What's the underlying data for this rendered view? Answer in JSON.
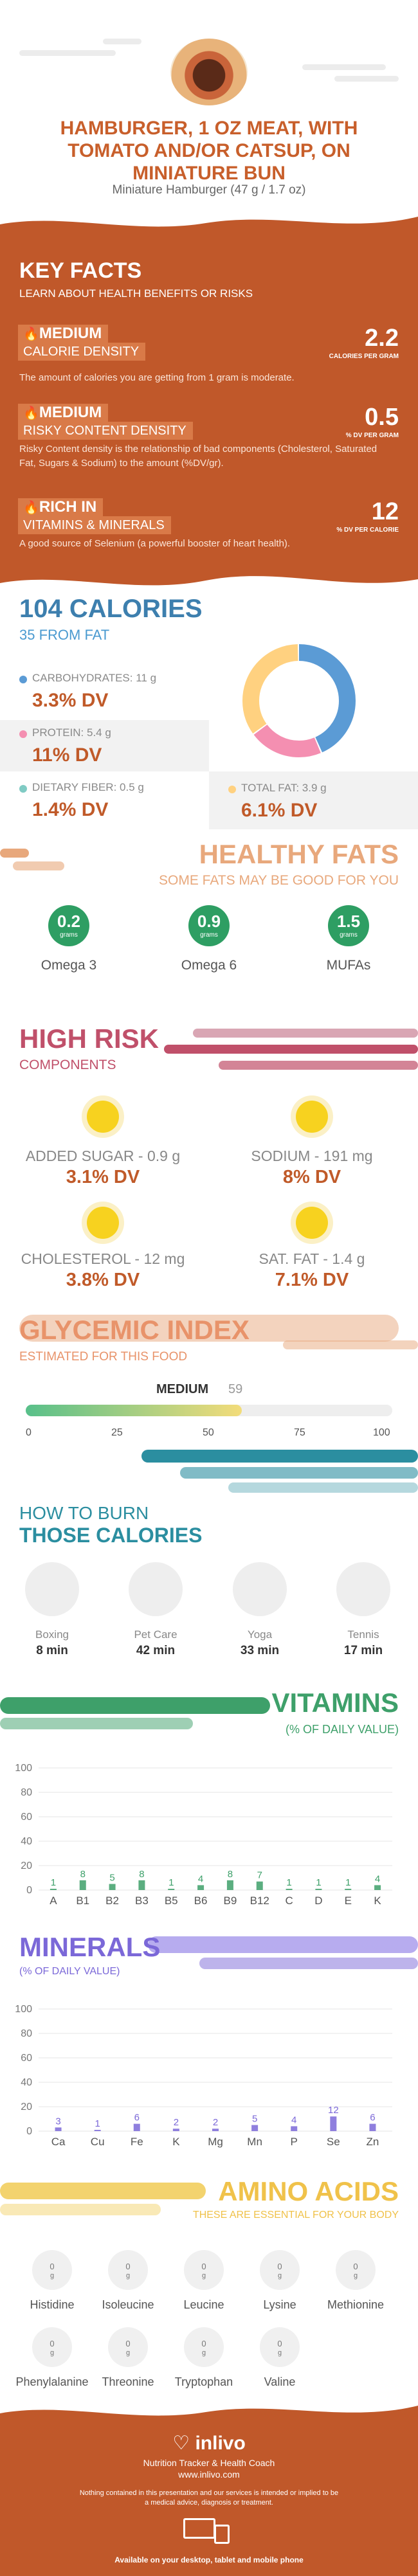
{
  "header": {
    "title": "HAMBURGER, 1 OZ MEAT, WITH TOMATO AND/OR CATSUP, ON MINIATURE BUN",
    "subtitle": "Miniature Hamburger (47 g / 1.7 oz)"
  },
  "key_facts": {
    "heading": "KEY FACTS",
    "subheading": "LEARN ABOUT HEALTH BENEFITS OR RISKS",
    "facts": [
      {
        "level": "MEDIUM",
        "label": "CALORIE DENSITY",
        "value": "2.2",
        "unit": "CALORIES PER GRAM",
        "desc": "The amount of calories you are getting from 1 gram is moderate.",
        "icon": "flame-icon"
      },
      {
        "level": "MEDIUM",
        "label": "RISKY CONTENT DENSITY",
        "value": "0.5",
        "unit": "% DV PER GRAM",
        "desc": "Risky Content density is the relationship of bad components (Cholesterol, Saturated Fat, Sugars & Sodium) to the amount (%DV/gr).",
        "icon": "flame-icon"
      },
      {
        "level": "RICH IN",
        "label": "VITAMINS & MINERALS",
        "value": "12",
        "unit": "% DV PER CALORIE",
        "desc": "A good source of Selenium (a powerful booster of heart health).",
        "icon": "flame-icon"
      }
    ]
  },
  "calories": {
    "title": "104 CALORIES",
    "from_fat": "35 FROM FAT",
    "macros": [
      {
        "label": "CARBOHYDRATES: 11 g",
        "dv": "3.3% DV",
        "color": "#5b9bd5"
      },
      {
        "label": "PROTEIN: 5.4 g",
        "dv": "11% DV",
        "color": "#f48fb1"
      },
      {
        "label": "DIETARY FIBER: 0.5 g",
        "dv": "1.4% DV",
        "color": "#80cbc4"
      },
      {
        "label": "TOTAL FAT: 3.9 g",
        "dv": "6.1% DV",
        "color": "#ffd180"
      }
    ]
  },
  "healthy_fats": {
    "title": "HEALTHY FATS",
    "subtitle": "SOME FATS MAY BE GOOD FOR YOU",
    "items": [
      {
        "value": "0.2",
        "unit": "grams",
        "name": "Omega 3"
      },
      {
        "value": "0.9",
        "unit": "grams",
        "name": "Omega 6"
      },
      {
        "value": "1.5",
        "unit": "grams",
        "name": "MUFAs"
      }
    ]
  },
  "high_risk": {
    "title": "HIGH RISK",
    "subtitle": "COMPONENTS",
    "items": [
      {
        "label": "ADDED SUGAR - 0.9 g",
        "dv": "3.1% DV"
      },
      {
        "label": "SODIUM - 191 mg",
        "dv": "8% DV"
      },
      {
        "label": "CHOLESTEROL - 12 mg",
        "dv": "3.8% DV"
      },
      {
        "label": "SAT. FAT - 1.4 g",
        "dv": "7.1% DV"
      }
    ]
  },
  "glycemic": {
    "title": "GLYCEMIC INDEX",
    "subtitle": "ESTIMATED FOR THIS FOOD",
    "level": "MEDIUM",
    "value": "59",
    "ticks": [
      "0",
      "25",
      "50",
      "75",
      "100"
    ]
  },
  "burn": {
    "title1": "HOW TO BURN",
    "title2": "THOSE CALORIES",
    "activities": [
      {
        "name": "Boxing",
        "min": "8 min"
      },
      {
        "name": "Pet Care",
        "min": "42 min"
      },
      {
        "name": "Yoga",
        "min": "33 min"
      },
      {
        "name": "Tennis",
        "min": "17 min"
      }
    ]
  },
  "chart_data": [
    {
      "type": "bar",
      "title": "VITAMINS",
      "subtitle": "(% OF DAILY VALUE)",
      "categories": [
        "A",
        "B1",
        "B2",
        "B3",
        "B5",
        "B6",
        "B9",
        "B12",
        "C",
        "D",
        "E",
        "K"
      ],
      "values": [
        1,
        8,
        5,
        8,
        1,
        4,
        8,
        7,
        1,
        1,
        1,
        4
      ],
      "ylim": [
        0,
        100
      ],
      "yticks": [
        "0",
        "20",
        "40",
        "60",
        "80",
        "100"
      ],
      "color": "#3ea06a"
    },
    {
      "type": "bar",
      "title": "MINERALS",
      "subtitle": "(% OF DAILY VALUE)",
      "categories": [
        "Ca",
        "Cu",
        "Fe",
        "K",
        "Mg",
        "Mn",
        "P",
        "Se",
        "Zn"
      ],
      "values": [
        3,
        1,
        6,
        2,
        2,
        5,
        4,
        12,
        6
      ],
      "ylim": [
        0,
        100
      ],
      "yticks": [
        "0",
        "20",
        "40",
        "60",
        "80",
        "100"
      ],
      "color": "#7b68d8"
    }
  ],
  "amino": {
    "title": "AMINO ACIDS",
    "subtitle": "THESE ARE ESSENTIAL FOR YOUR BODY",
    "items": [
      {
        "value": "0",
        "unit": "g",
        "name": "Histidine"
      },
      {
        "value": "0",
        "unit": "g",
        "name": "Isoleucine"
      },
      {
        "value": "0",
        "unit": "g",
        "name": "Leucine"
      },
      {
        "value": "0",
        "unit": "g",
        "name": "Lysine"
      },
      {
        "value": "0",
        "unit": "g",
        "name": "Methionine"
      },
      {
        "value": "0",
        "unit": "g",
        "name": "Phenylalanine"
      },
      {
        "value": "0",
        "unit": "g",
        "name": "Threonine"
      },
      {
        "value": "0",
        "unit": "g",
        "name": "Tryptophan"
      },
      {
        "value": "0",
        "unit": "g",
        "name": "Valine"
      }
    ]
  },
  "footer": {
    "brand": "inlivo",
    "tagline": "Nutrition Tracker & Health Coach",
    "url": "www.inlivo.com",
    "disclaimer": "Nothing contained in this presentation and our services is intended or implied to be a medical advice, diagnosis or treatment.",
    "available": "Available on your desktop, tablet and mobile phone"
  },
  "colors": {
    "brand_orange": "#c0582a",
    "blue": "#3d7fae",
    "green": "#3ea06a",
    "purple": "#7b68d8",
    "peach": "#e8a87c",
    "teal": "#2b8ea0"
  }
}
